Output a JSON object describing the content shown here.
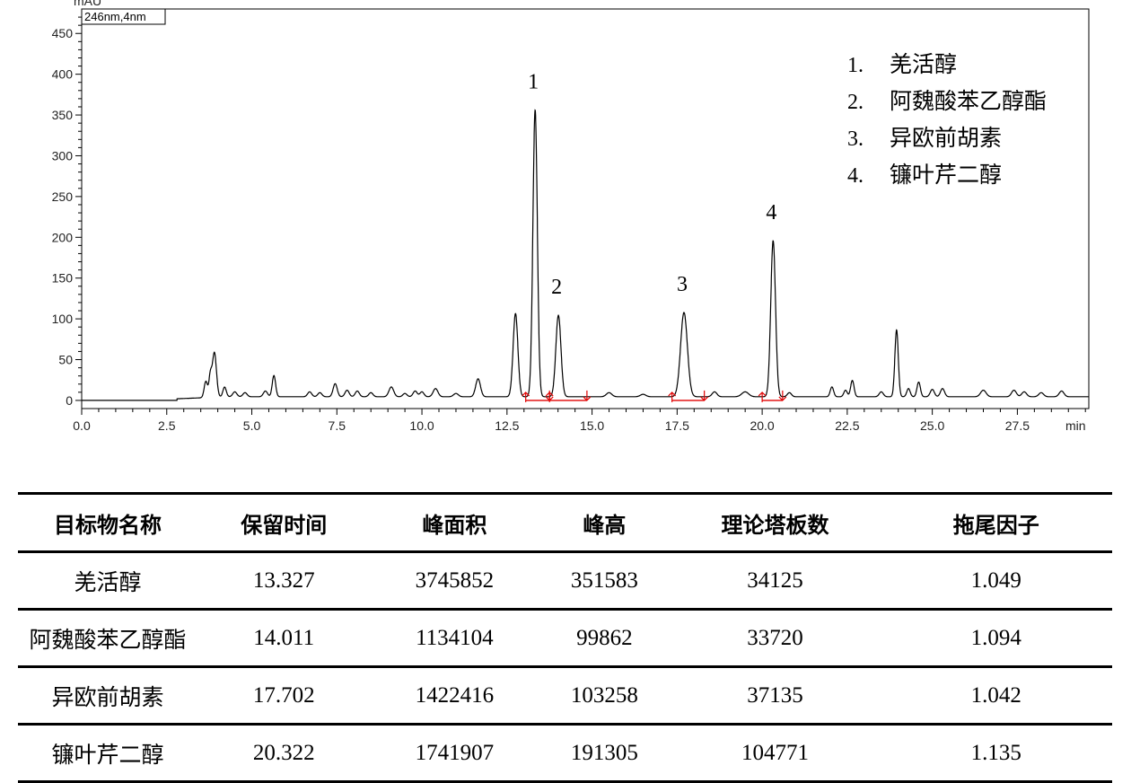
{
  "chart_data": {
    "type": "line",
    "detector_label": "246nm,4nm",
    "yunit_label": "mAU",
    "xunit_label": "min",
    "xlim": [
      0,
      29.6
    ],
    "ylim": [
      -10,
      480
    ],
    "xticks": [
      0.0,
      2.5,
      5.0,
      7.5,
      10.0,
      12.5,
      15.0,
      17.5,
      20.0,
      22.5,
      25.0,
      27.5
    ],
    "xtick_labels": [
      "0.0",
      "2.5",
      "5.0",
      "7.5",
      "10.0",
      "12.5",
      "15.0",
      "17.5",
      "20.0",
      "22.5",
      "25.0",
      "27.5"
    ],
    "yticks": [
      0,
      50,
      100,
      150,
      200,
      250,
      300,
      350,
      400,
      450
    ],
    "ytick_labels": [
      "0",
      "50",
      "100",
      "150",
      "200",
      "250",
      "300",
      "350",
      "400",
      "450"
    ],
    "grid": false,
    "peaks": [
      {
        "rt": 3.65,
        "h": 20,
        "w": 0.05
      },
      {
        "rt": 3.78,
        "h": 25,
        "w": 0.04
      },
      {
        "rt": 3.9,
        "h": 55,
        "w": 0.06
      },
      {
        "rt": 4.2,
        "h": 12,
        "w": 0.05
      },
      {
        "rt": 4.5,
        "h": 6,
        "w": 0.06
      },
      {
        "rt": 4.8,
        "h": 5,
        "w": 0.06
      },
      {
        "rt": 5.4,
        "h": 7,
        "w": 0.06
      },
      {
        "rt": 5.65,
        "h": 26,
        "w": 0.05
      },
      {
        "rt": 6.7,
        "h": 6,
        "w": 0.06
      },
      {
        "rt": 7.0,
        "h": 5,
        "w": 0.06
      },
      {
        "rt": 7.45,
        "h": 16,
        "w": 0.06
      },
      {
        "rt": 7.8,
        "h": 8,
        "w": 0.06
      },
      {
        "rt": 8.1,
        "h": 7,
        "w": 0.06
      },
      {
        "rt": 8.5,
        "h": 5,
        "w": 0.06
      },
      {
        "rt": 9.1,
        "h": 12,
        "w": 0.07
      },
      {
        "rt": 9.5,
        "h": 4,
        "w": 0.06
      },
      {
        "rt": 9.8,
        "h": 7,
        "w": 0.06
      },
      {
        "rt": 10.0,
        "h": 6,
        "w": 0.06
      },
      {
        "rt": 10.4,
        "h": 10,
        "w": 0.07
      },
      {
        "rt": 11.0,
        "h": 4,
        "w": 0.07
      },
      {
        "rt": 11.65,
        "h": 22,
        "w": 0.07
      },
      {
        "rt": 12.75,
        "h": 102,
        "w": 0.07
      },
      {
        "rt": 13.327,
        "h": 351.6,
        "w": 0.065
      },
      {
        "rt": 14.011,
        "h": 99.9,
        "w": 0.075
      },
      {
        "rt": 15.5,
        "h": 5,
        "w": 0.08
      },
      {
        "rt": 16.5,
        "h": 3,
        "w": 0.08
      },
      {
        "rt": 17.702,
        "h": 103.3,
        "w": 0.1
      },
      {
        "rt": 18.6,
        "h": 6,
        "w": 0.07
      },
      {
        "rt": 19.5,
        "h": 6,
        "w": 0.1
      },
      {
        "rt": 20.322,
        "h": 191.3,
        "w": 0.07
      },
      {
        "rt": 20.8,
        "h": 5,
        "w": 0.06
      },
      {
        "rt": 22.05,
        "h": 12,
        "w": 0.05
      },
      {
        "rt": 22.45,
        "h": 8,
        "w": 0.05
      },
      {
        "rt": 22.65,
        "h": 20,
        "w": 0.05
      },
      {
        "rt": 23.5,
        "h": 6,
        "w": 0.06
      },
      {
        "rt": 23.95,
        "h": 82,
        "w": 0.05
      },
      {
        "rt": 24.3,
        "h": 10,
        "w": 0.05
      },
      {
        "rt": 24.6,
        "h": 18,
        "w": 0.05
      },
      {
        "rt": 25.0,
        "h": 9,
        "w": 0.06
      },
      {
        "rt": 25.3,
        "h": 10,
        "w": 0.06
      },
      {
        "rt": 26.5,
        "h": 8,
        "w": 0.08
      },
      {
        "rt": 27.4,
        "h": 8,
        "w": 0.07
      },
      {
        "rt": 27.7,
        "h": 6,
        "w": 0.07
      },
      {
        "rt": 28.2,
        "h": 5,
        "w": 0.07
      },
      {
        "rt": 28.8,
        "h": 7,
        "w": 0.07
      }
    ],
    "baseline_markers": [
      {
        "x1": 13.05,
        "x2": 13.75
      },
      {
        "x1": 13.75,
        "x2": 14.85
      },
      {
        "x1": 17.35,
        "x2": 18.3
      },
      {
        "x1": 20.0,
        "x2": 20.6
      }
    ],
    "peak_labels": [
      {
        "text": "1",
        "x": 13.327,
        "y": 351.6
      },
      {
        "text": "2",
        "x": 14.011,
        "y": 99.9
      },
      {
        "text": "3",
        "x": 17.702,
        "y": 103.3
      },
      {
        "text": "4",
        "x": 20.322,
        "y": 191.3
      }
    ],
    "legend_position": "top-right",
    "legend": [
      {
        "num": "1.",
        "name": "羌活醇"
      },
      {
        "num": "2.",
        "name": "阿魏酸苯乙醇酯"
      },
      {
        "num": "3.",
        "name": "异欧前胡素"
      },
      {
        "num": "4.",
        "name": "镰叶芹二醇"
      }
    ]
  },
  "table": {
    "headers": [
      "目标物名称",
      "保留时间",
      "峰面积",
      "峰高",
      "理论塔板数",
      "拖尾因子"
    ],
    "rows": [
      [
        "羌活醇",
        "13.327",
        "3745852",
        "351583",
        "34125",
        "1.049"
      ],
      [
        "阿魏酸苯乙醇酯",
        "14.011",
        "1134104",
        "99862",
        "33720",
        "1.094"
      ],
      [
        "异欧前胡素",
        "17.702",
        "1422416",
        "103258",
        "37135",
        "1.042"
      ],
      [
        "镰叶芹二醇",
        "20.322",
        "1741907",
        "191305",
        "104771",
        "1.135"
      ]
    ]
  },
  "colors": {
    "trace": "#000000",
    "baseline_marker": "#e00000"
  }
}
